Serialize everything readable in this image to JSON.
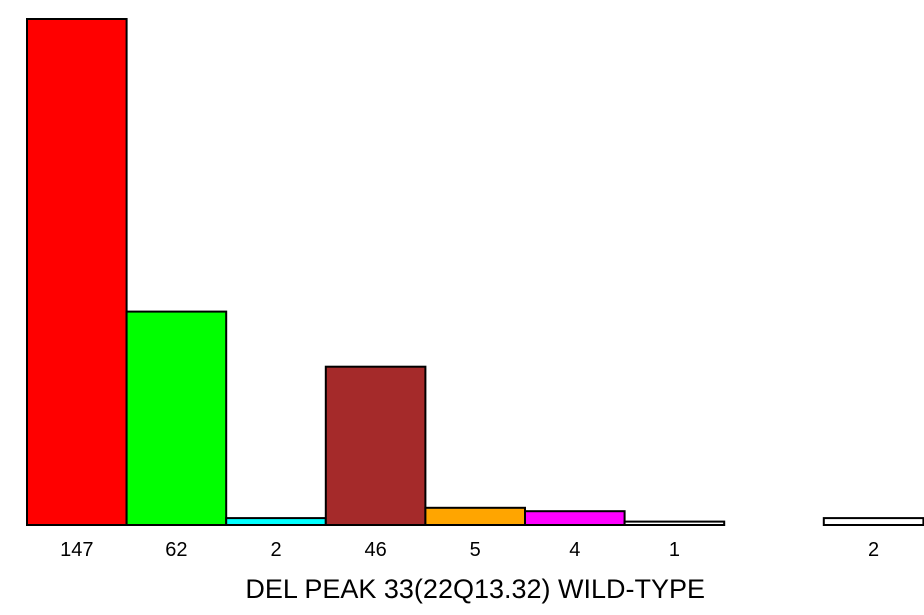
{
  "chart_data": {
    "type": "bar",
    "xlabel": "DEL PEAK 33(22Q13.32) WILD-TYPE",
    "ylabel": "",
    "categories": [
      "147",
      "62",
      "2",
      "46",
      "5",
      "4",
      "1",
      "",
      "2"
    ],
    "values": [
      147,
      62,
      2,
      46,
      5,
      4,
      1,
      0,
      2
    ],
    "colors": [
      "#ff0000",
      "#00ff00",
      "#00ffff",
      "#a52a2a",
      "#ffa500",
      "#ff00ff",
      "#ffffff",
      "#ffffff",
      "#ffffff"
    ],
    "ylim": [
      0,
      147
    ],
    "grid": false,
    "legend": "none"
  }
}
